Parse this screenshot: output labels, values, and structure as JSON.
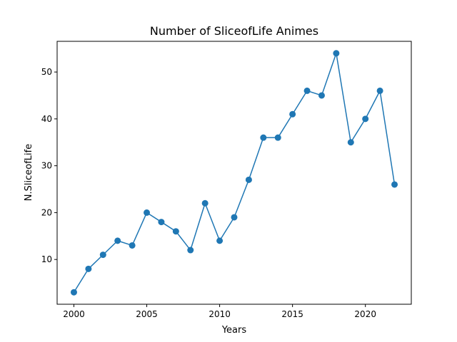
{
  "chart_data": {
    "type": "line",
    "title": "Number of SliceofLife Animes",
    "xlabel": "Years",
    "ylabel": "N.SliceofLife",
    "x": [
      2000,
      2001,
      2002,
      2003,
      2004,
      2005,
      2006,
      2007,
      2008,
      2009,
      2010,
      2011,
      2012,
      2013,
      2014,
      2015,
      2016,
      2017,
      2018,
      2019,
      2020,
      2021,
      2022
    ],
    "series": [
      {
        "values": [
          3,
          8,
          11,
          14,
          13,
          20,
          18,
          16,
          12,
          22,
          14,
          19,
          27,
          36,
          36,
          41,
          46,
          45,
          54,
          35,
          40,
          46,
          26
        ],
        "color": "#1f77b4",
        "marker": "circle"
      }
    ],
    "xlim": [
      1998.85,
      2023.15
    ],
    "ylim": [
      0.45,
      56.55
    ],
    "xticks": [
      2000,
      2005,
      2010,
      2015,
      2020
    ],
    "yticks": [
      10,
      20,
      30,
      40,
      50
    ],
    "grid": false,
    "legend": "none"
  }
}
